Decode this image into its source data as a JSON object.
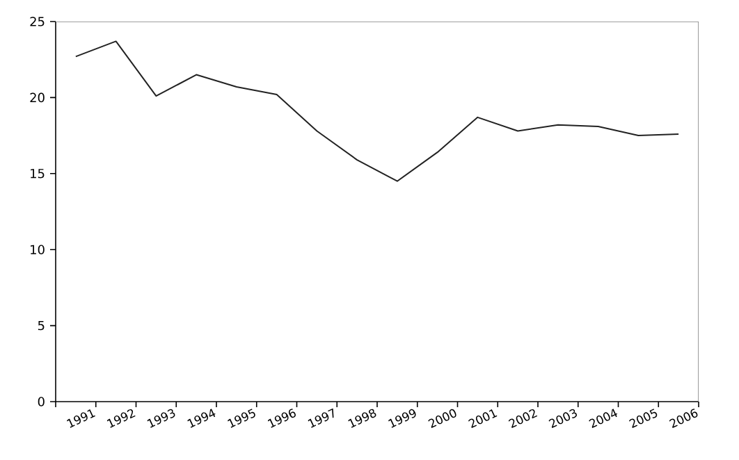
{
  "chart_data": {
    "type": "line",
    "categories": [
      "1991",
      "1992",
      "1993",
      "1994",
      "1995",
      "1996",
      "1997",
      "1998",
      "1999",
      "2000",
      "2001",
      "2002",
      "2003",
      "2004",
      "2005",
      "2006"
    ],
    "values": [
      22.7,
      23.7,
      20.1,
      21.5,
      20.7,
      20.2,
      17.8,
      15.9,
      14.5,
      16.4,
      18.7,
      17.8,
      18.2,
      18.1,
      17.5,
      17.6
    ],
    "color": "#222222",
    "ylim": [
      0,
      25
    ],
    "yticks": [
      0,
      5,
      10,
      15,
      20,
      25
    ],
    "grid": false
  }
}
